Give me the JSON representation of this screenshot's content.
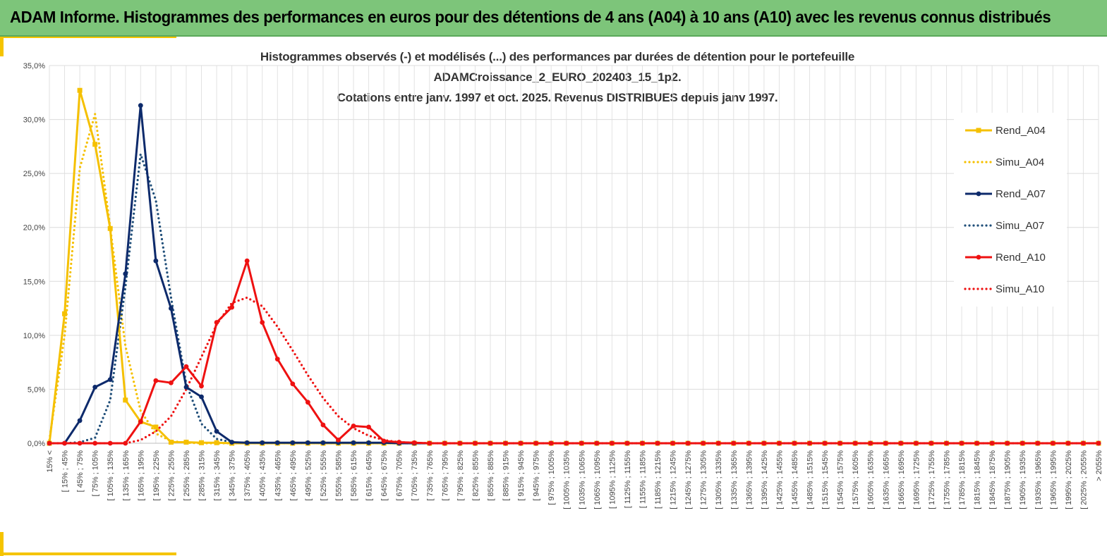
{
  "banner": {
    "title": "ADAM Informe. Histogrammes des performances en euros pour des détentions de 4 ans (A04) à 10 ans (A10) avec les revenus connus distribués",
    "background": "#7dc57a"
  },
  "chart_data": {
    "type": "line",
    "title_lines": [
      "Histogrammes observés (-) et modélisés (...) des performances par durées de détention pour le portefeuille",
      "ADAMCroissance_2_EURO_202403_15_1p2.",
      "Cotations entre janv. 1997 et oct. 2025. Revenus DISTRIBUES depuis janv 1997."
    ],
    "xlabel": "",
    "ylabel": "",
    "ylim": [
      0,
      35
    ],
    "yticks": [
      "0,0%",
      "5,0%",
      "10,0%",
      "15,0%",
      "20,0%",
      "25,0%",
      "30,0%",
      "35,0%"
    ],
    "grid": true,
    "legend_position": "right",
    "categories": [
      "15% <",
      "[ 15% ; 45%",
      "[ 45% ; 75%",
      "[ 75% ; 105%",
      "[ 105% ; 135%",
      "[ 135% ; 165%",
      "[ 165% ; 195%",
      "[ 195% ; 225%",
      "[ 225% ; 255%",
      "[ 255% ; 285%",
      "[ 285% ; 315%",
      "[ 315% ; 345%",
      "[ 345% ; 375%",
      "[ 375% ; 405%",
      "[ 405% ; 435%",
      "[ 435% ; 465%",
      "[ 465% ; 495%",
      "[ 495% ; 525%",
      "[ 525% ; 555%",
      "[ 555% ; 585%",
      "[ 585% ; 615%",
      "[ 615% ; 645%",
      "[ 645% ; 675%",
      "[ 675% ; 705%",
      "[ 705% ; 735%",
      "[ 735% ; 765%",
      "[ 765% ; 795%",
      "[ 795% ; 825%",
      "[ 825% ; 855%",
      "[ 855% ; 885%",
      "[ 885% ; 915%",
      "[ 915% ; 945%",
      "[ 945% ; 975%",
      "[ 975% ; 1005%",
      "[ 1005% ; 1035%",
      "[ 1035% ; 1065%",
      "[ 1065% ; 1095%",
      "[ 1095% ; 1125%",
      "[ 1125% ; 1155%",
      "[ 1155% ; 1185%",
      "[ 1185% ; 1215%",
      "[ 1215% ; 1245%",
      "[ 1245% ; 1275%",
      "[ 1275% ; 1305%",
      "[ 1305% ; 1335%",
      "[ 1335% ; 1365%",
      "[ 1365% ; 1395%",
      "[ 1395% ; 1425%",
      "[ 1425% ; 1455%",
      "[ 1455% ; 1485%",
      "[ 1485% ; 1515%",
      "[ 1515% ; 1545%",
      "[ 1545% ; 1575%",
      "[ 1575% ; 1605%",
      "[ 1605% ; 1635%",
      "[ 1635% ; 1665%",
      "[ 1665% ; 1695%",
      "[ 1695% ; 1725%",
      "[ 1725% ; 1755%",
      "[ 1755% ; 1785%",
      "[ 1785% ; 1815%",
      "[ 1815% ; 1845%",
      "[ 1845% ; 1875%",
      "[ 1875% ; 1905%",
      "[ 1905% ; 1935%",
      "[ 1935% ; 1965%",
      "[ 1965% ; 1995%",
      "[ 1995% ; 2025%",
      "[ 2025% ; 2055%",
      "> 2055%"
    ],
    "series": [
      {
        "name": "Rend_A04",
        "style": "solid",
        "color": "#f5c000",
        "markers": true,
        "values": [
          0,
          12.0,
          32.7,
          27.7,
          19.9,
          4.0,
          2.0,
          1.5,
          0.1,
          0.1,
          0.05,
          0.05,
          0,
          0,
          0,
          0,
          0,
          0,
          0,
          0,
          0,
          0,
          0,
          0,
          0,
          0,
          0,
          0,
          0,
          0,
          0,
          0,
          0,
          0,
          0,
          0,
          0,
          0,
          0,
          0,
          0,
          0,
          0,
          0,
          0,
          0,
          0,
          0,
          0,
          0,
          0,
          0,
          0,
          0,
          0,
          0,
          0,
          0,
          0,
          0,
          0,
          0,
          0,
          0,
          0,
          0,
          0,
          0,
          0,
          0
        ]
      },
      {
        "name": "Simu_A04",
        "style": "dotted",
        "color": "#f5c000",
        "markers": false,
        "values": [
          0.3,
          10.0,
          25.5,
          30.5,
          20.0,
          9.0,
          3.0,
          0.9,
          0.2,
          0.05,
          0,
          0,
          0,
          0,
          0,
          0,
          0,
          0,
          0,
          0,
          0,
          0,
          0,
          0,
          0,
          0,
          0,
          0,
          0,
          0,
          0,
          0,
          0,
          0,
          0,
          0,
          0,
          0,
          0,
          0,
          0,
          0,
          0,
          0,
          0,
          0,
          0,
          0,
          0,
          0,
          0,
          0,
          0,
          0,
          0,
          0,
          0,
          0,
          0,
          0,
          0,
          0,
          0,
          0,
          0,
          0,
          0,
          0,
          0,
          0
        ]
      },
      {
        "name": "Rend_A07",
        "style": "solid",
        "color": "#0d2a6b",
        "markers": true,
        "values": [
          0,
          0,
          2.1,
          5.2,
          5.9,
          15.7,
          31.3,
          16.9,
          12.5,
          5.2,
          4.3,
          1.1,
          0.1,
          0.05,
          0.05,
          0.05,
          0.05,
          0.05,
          0.05,
          0.05,
          0.05,
          0.05,
          0.05,
          0,
          0,
          0,
          0,
          0,
          0,
          0,
          0,
          0,
          0,
          0,
          0,
          0,
          0,
          0,
          0,
          0,
          0,
          0,
          0,
          0,
          0,
          0,
          0,
          0,
          0,
          0,
          0,
          0,
          0,
          0,
          0,
          0,
          0,
          0,
          0,
          0,
          0,
          0,
          0,
          0,
          0,
          0,
          0,
          0,
          0,
          0
        ]
      },
      {
        "name": "Simu_A07",
        "style": "dotted",
        "color": "#1f4e79",
        "markers": false,
        "values": [
          0,
          0,
          0.1,
          0.5,
          4.0,
          14.5,
          26.8,
          22.5,
          13.5,
          5.5,
          1.8,
          0.4,
          0.1,
          0,
          0,
          0,
          0,
          0,
          0,
          0,
          0,
          0,
          0,
          0,
          0,
          0,
          0,
          0,
          0,
          0,
          0,
          0,
          0,
          0,
          0,
          0,
          0,
          0,
          0,
          0,
          0,
          0,
          0,
          0,
          0,
          0,
          0,
          0,
          0,
          0,
          0,
          0,
          0,
          0,
          0,
          0,
          0,
          0,
          0,
          0,
          0,
          0,
          0,
          0,
          0,
          0,
          0,
          0,
          0,
          0
        ]
      },
      {
        "name": "Rend_A10",
        "style": "solid",
        "color": "#ee1111",
        "markers": true,
        "values": [
          0,
          0,
          0,
          0,
          0,
          0,
          2.0,
          5.8,
          5.6,
          7.1,
          5.3,
          11.2,
          12.6,
          16.9,
          11.2,
          7.8,
          5.5,
          3.8,
          1.7,
          0.3,
          1.6,
          1.5,
          0.2,
          0.1,
          0.05,
          0,
          0,
          0,
          0,
          0,
          0,
          0,
          0,
          0,
          0,
          0,
          0,
          0,
          0,
          0,
          0,
          0,
          0,
          0,
          0,
          0,
          0,
          0,
          0,
          0,
          0,
          0,
          0,
          0,
          0,
          0,
          0,
          0,
          0,
          0,
          0,
          0,
          0,
          0,
          0,
          0,
          0,
          0,
          0,
          0
        ]
      },
      {
        "name": "Simu_A10",
        "style": "dotted",
        "color": "#ee1111",
        "markers": false,
        "values": [
          0,
          0,
          0,
          0,
          0,
          0,
          0.3,
          1.1,
          2.5,
          5.0,
          8.0,
          11.0,
          13.0,
          13.5,
          12.7,
          10.8,
          8.6,
          6.3,
          4.2,
          2.5,
          1.4,
          0.7,
          0.3,
          0.1,
          0.05,
          0,
          0,
          0,
          0,
          0,
          0,
          0,
          0,
          0,
          0,
          0,
          0,
          0,
          0,
          0,
          0,
          0,
          0,
          0,
          0,
          0,
          0,
          0,
          0,
          0,
          0,
          0,
          0,
          0,
          0,
          0,
          0,
          0,
          0,
          0,
          0,
          0,
          0,
          0,
          0,
          0,
          0,
          0,
          0,
          0
        ]
      }
    ]
  }
}
